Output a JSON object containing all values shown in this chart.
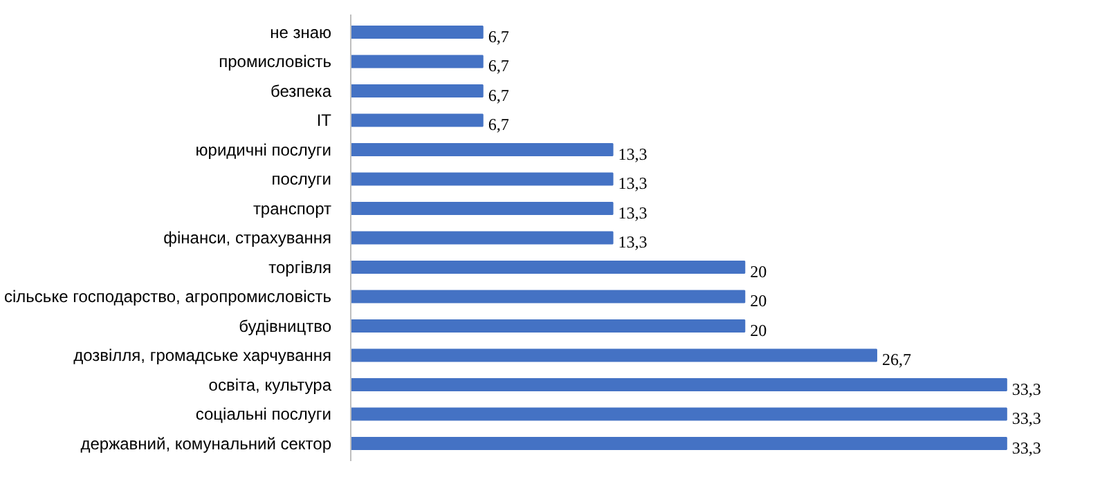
{
  "chart_data": {
    "type": "bar",
    "orientation": "horizontal",
    "color": "#4472c4",
    "data_labels": true,
    "categories": [
      "не знаю",
      "промисловість",
      "безпека",
      "IT",
      "юридичні послуги",
      "послуги",
      "транспорт",
      "фінанси, страхування",
      "торгівля",
      "сільське господарство, агропромисловість",
      "будівництво",
      "дозвілля, громадське харчування",
      "освіта, культура",
      "соціальні послуги",
      "державний, комунальний сектор"
    ],
    "values": [
      6.7,
      6.7,
      6.7,
      6.7,
      13.3,
      13.3,
      13.3,
      13.3,
      20,
      20,
      20,
      26.7,
      33.3,
      33.3,
      33.3
    ],
    "value_labels": [
      "6,7",
      "6,7",
      "6,7",
      "6,7",
      "13,3",
      "13,3",
      "13,3",
      "13,3",
      "20",
      "20",
      "20",
      "26,7",
      "33,3",
      "33,3",
      "33,3"
    ]
  }
}
